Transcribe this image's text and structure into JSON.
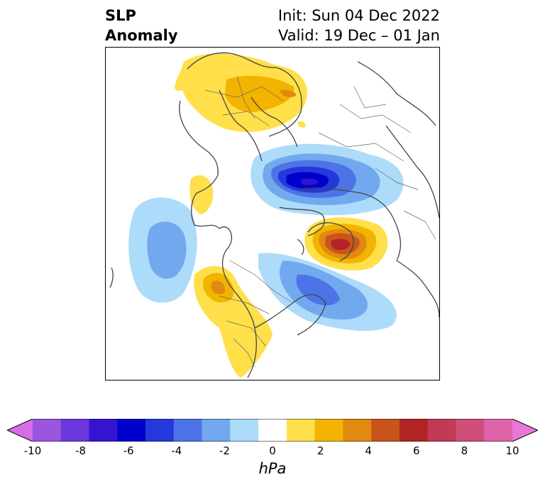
{
  "title": {
    "left_line1": "SLP",
    "left_line2": "Anomaly",
    "right_line1": "Init: Sun 04 Dec 2022",
    "right_line2": "Valid: 19 Dec – 01 Jan"
  },
  "colorbar": {
    "unit": "hPa",
    "ticks": [
      "-10",
      "-8",
      "-6",
      "-4",
      "-2",
      "0",
      "2",
      "4",
      "6",
      "8",
      "10"
    ],
    "colors": [
      "#d56fe5",
      "#9b55de",
      "#6c37dc",
      "#3513d1",
      "#0000cd",
      "#2538dc",
      "#4d74e6",
      "#72a9ee",
      "#addcfa",
      "#ffffff",
      "#ffe04a",
      "#f2b400",
      "#e18a10",
      "#c9551a",
      "#b22424",
      "#c33a54",
      "#cf4e7a",
      "#dd64a8",
      "#e977d8"
    ],
    "extend": "both"
  },
  "map": {
    "projection": "north-polar-stereographic",
    "region": "Northern Hemisphere",
    "anomaly_centers": [
      {
        "name": "negative-center-arctic",
        "sign": "negative",
        "approx_value": "-6"
      },
      {
        "name": "positive-center-scandinavia-siberia",
        "sign": "positive",
        "approx_value": "2"
      },
      {
        "name": "positive-center-greenland-europe",
        "sign": "positive",
        "approx_value": "6"
      },
      {
        "name": "negative-center-north-pacific",
        "sign": "negative",
        "approx_value": "-3"
      },
      {
        "name": "negative-center-north-atlantic",
        "sign": "negative",
        "approx_value": "-3"
      },
      {
        "name": "positive-center-western-north-america",
        "sign": "positive",
        "approx_value": "3"
      }
    ]
  }
}
